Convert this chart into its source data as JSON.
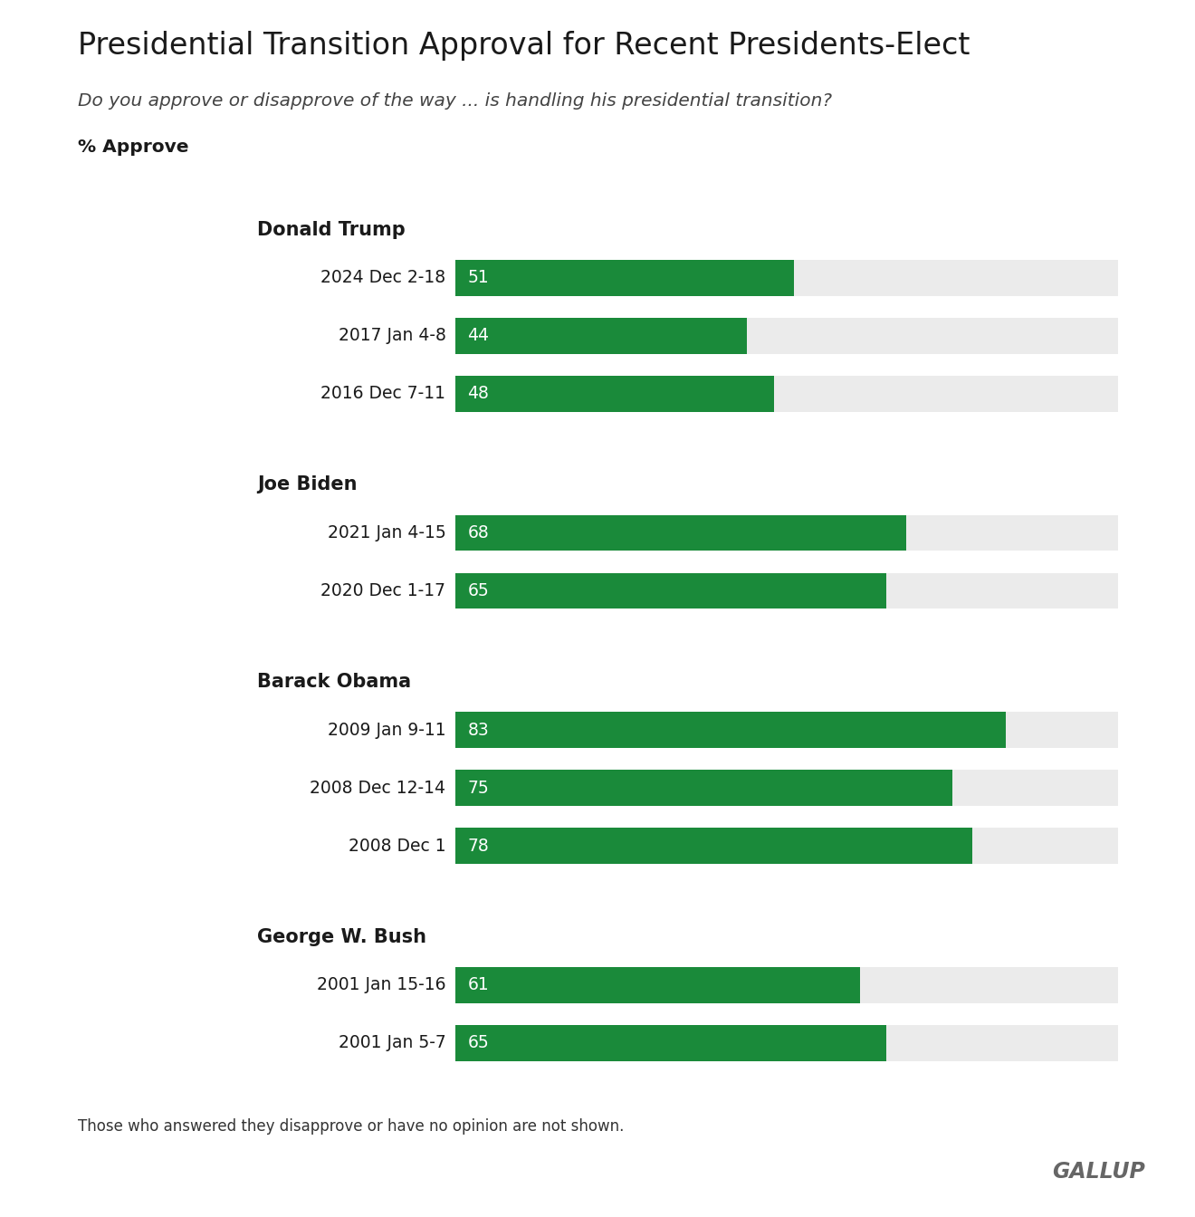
{
  "title": "Presidential Transition Approval for Recent Presidents-Elect",
  "subtitle": "Do you approve or disapprove of the way ... is handling his presidential transition?",
  "ylabel_label": "% Approve",
  "bar_color": "#1a8a3a",
  "bg_color": "#ebebeb",
  "white_bg": "#ffffff",
  "footnote": "Those who answered they disapprove or have no opinion are not shown.",
  "gallup_text": "GALLUP",
  "groups": [
    {
      "name": "Donald Trump",
      "bars": [
        {
          "label": "2024 Dec 2-18",
          "value": 51
        },
        {
          "label": "2017 Jan 4-8",
          "value": 44
        },
        {
          "label": "2016 Dec 7-11",
          "value": 48
        }
      ]
    },
    {
      "name": "Joe Biden",
      "bars": [
        {
          "label": "2021 Jan 4-15",
          "value": 68
        },
        {
          "label": "2020 Dec 1-17",
          "value": 65
        }
      ]
    },
    {
      "name": "Barack Obama",
      "bars": [
        {
          "label": "2009 Jan 9-11",
          "value": 83
        },
        {
          "label": "2008 Dec 12-14",
          "value": 75
        },
        {
          "label": "2008 Dec 1",
          "value": 78
        }
      ]
    },
    {
      "name": "George W. Bush",
      "bars": [
        {
          "label": "2001 Jan 15-16",
          "value": 61
        },
        {
          "label": "2001 Jan 5-7",
          "value": 65
        }
      ]
    }
  ],
  "max_value": 100,
  "bar_height": 0.62,
  "label_fontsize": 13.5,
  "value_fontsize": 13.5,
  "group_name_fontsize": 15,
  "title_fontsize": 24,
  "subtitle_fontsize": 14.5,
  "footnote_fontsize": 12,
  "gallup_fontsize": 17
}
